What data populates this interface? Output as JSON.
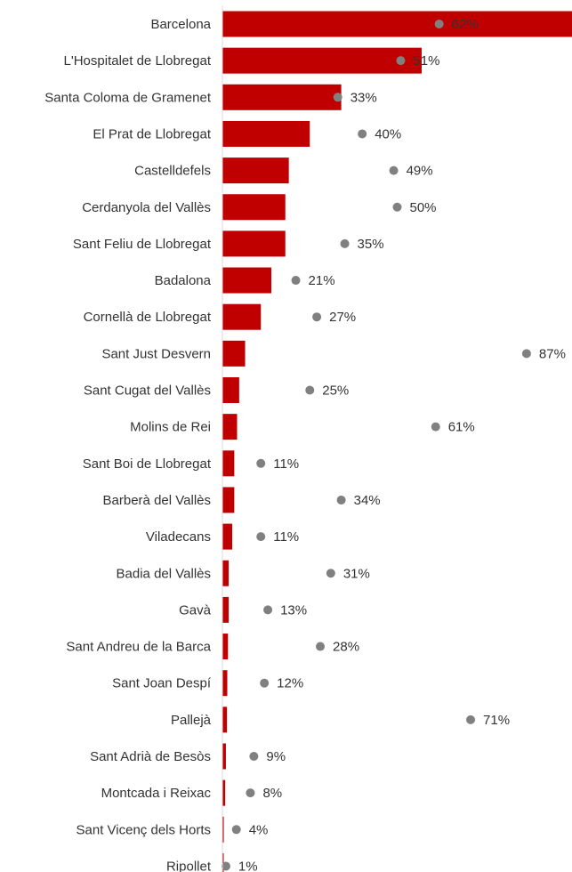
{
  "chart_data": {
    "type": "bar",
    "categories": [
      "Barcelona",
      "L'Hospitalet de Llobregat",
      "Santa Coloma de Gramenet",
      "El Prat de Llobregat",
      "Castelldefels",
      "Cerdanyola del Vallès",
      "Sant Feliu de Llobregat",
      "Badalona",
      "Cornellà de Llobregat",
      "Sant Just Desvern",
      "Sant Cugat del Vallès",
      "Molins de Rei",
      "Sant Boi de Llobregat",
      "Barberà del Vallès",
      "Viladecans",
      "Badia del Vallès",
      "Gavà",
      "Sant Andreu de la Barca",
      "Sant Joan Despí",
      "Pallejà",
      "Sant Adrià de Besòs",
      "Montcada i Reixac",
      "Sant Vicenç dels Horts",
      "Ripollet"
    ],
    "series": [
      {
        "values": [
          100,
          57,
          34,
          25,
          19,
          18,
          18,
          14,
          11,
          6.5,
          4.8,
          4.2,
          3.4,
          3.4,
          2.8,
          1.8,
          1.8,
          1.6,
          1.4,
          1.3,
          1.0,
          0.8,
          0.4,
          0.2
        ],
        "color": "#c00000"
      },
      {
        "values": [
          62,
          51,
          33,
          40,
          49,
          50,
          35,
          21,
          27,
          87,
          25,
          61,
          11,
          34,
          11,
          31,
          13,
          28,
          12,
          71,
          9,
          8,
          4,
          1
        ],
        "labels": [
          "62%",
          "51%",
          "33%",
          "40%",
          "49%",
          "50%",
          "35%",
          "21%",
          "27%",
          "87%",
          "25%",
          "61%",
          "11%",
          "34%",
          "11%",
          "31%",
          "13%",
          "28%",
          "12%",
          "71%",
          "9%",
          "8%",
          "4%",
          "1%"
        ],
        "color": "#808080"
      }
    ],
    "xlim": [
      0,
      100
    ],
    "grid": false,
    "legend": "none"
  }
}
